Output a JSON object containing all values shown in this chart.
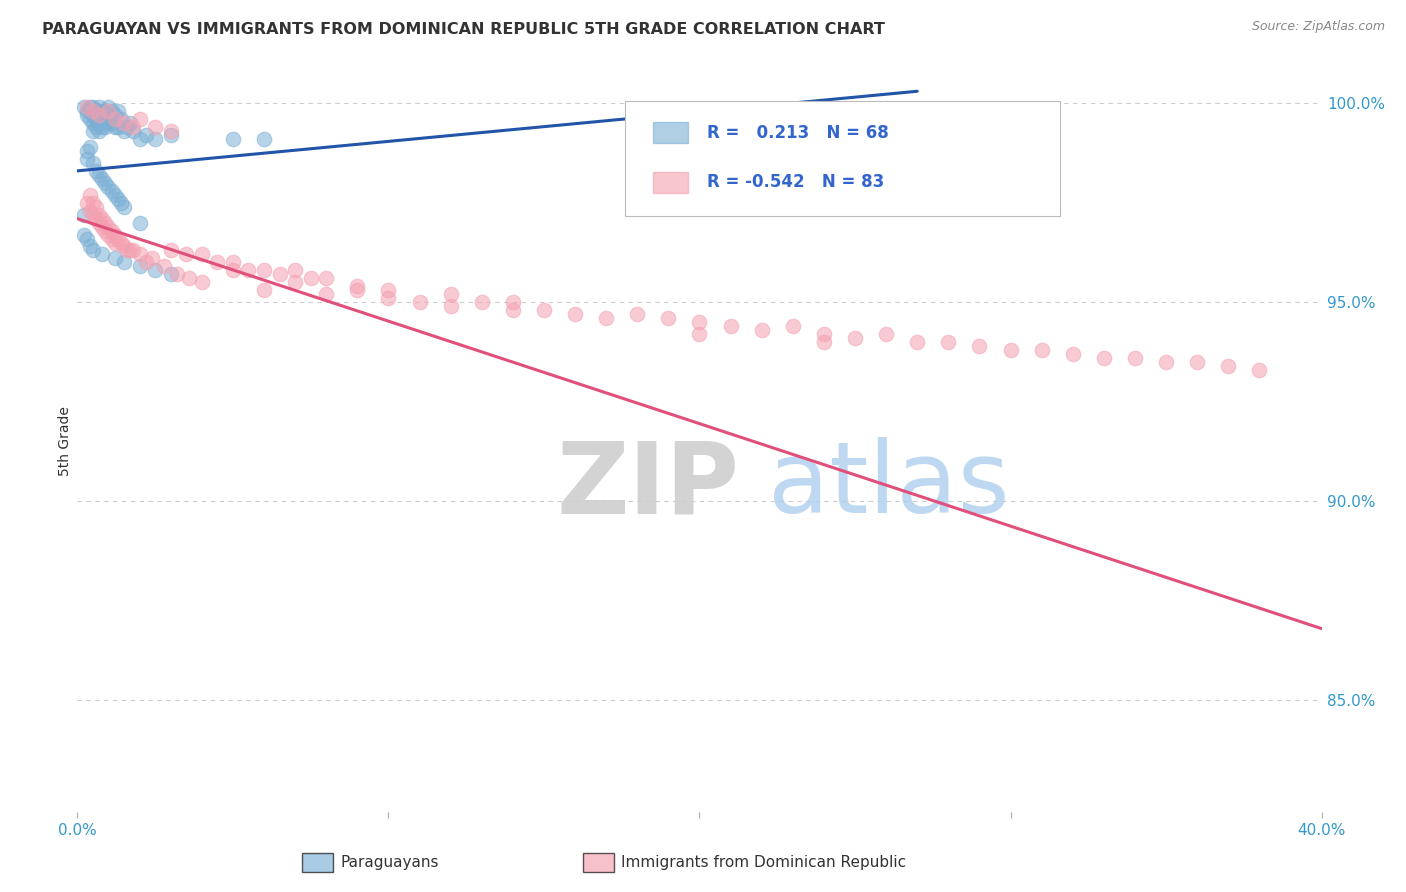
{
  "title": "PARAGUAYAN VS IMMIGRANTS FROM DOMINICAN REPUBLIC 5TH GRADE CORRELATION CHART",
  "source": "Source: ZipAtlas.com",
  "ylabel": "5th Grade",
  "right_yticks": [
    "100.0%",
    "95.0%",
    "90.0%",
    "85.0%"
  ],
  "right_ytick_vals": [
    1.0,
    0.95,
    0.9,
    0.85
  ],
  "xmin": 0.0,
  "xmax": 0.4,
  "ymin": 0.822,
  "ymax": 1.008,
  "legend_R1": " 0.213",
  "legend_N1": "68",
  "legend_R2": "-0.542",
  "legend_N2": "83",
  "blue_color": "#7BAFD4",
  "pink_color": "#F4A0B0",
  "trendline_blue": "#2255AA",
  "trendline_pink": "#E0507A",
  "blue_trend_x": [
    0.0,
    0.27
  ],
  "blue_trend_y": [
    0.983,
    1.003
  ],
  "pink_trend_x": [
    0.0,
    0.4
  ],
  "pink_trend_y": [
    0.971,
    0.868
  ],
  "blue_scatter_x": [
    0.002,
    0.003,
    0.003,
    0.004,
    0.004,
    0.005,
    0.005,
    0.005,
    0.005,
    0.006,
    0.006,
    0.006,
    0.007,
    0.007,
    0.007,
    0.007,
    0.008,
    0.008,
    0.008,
    0.009,
    0.009,
    0.009,
    0.01,
    0.01,
    0.01,
    0.011,
    0.011,
    0.012,
    0.012,
    0.013,
    0.013,
    0.014,
    0.015,
    0.016,
    0.017,
    0.018,
    0.02,
    0.022,
    0.025,
    0.03,
    0.003,
    0.003,
    0.004,
    0.005,
    0.006,
    0.007,
    0.008,
    0.009,
    0.01,
    0.011,
    0.012,
    0.013,
    0.014,
    0.015,
    0.02,
    0.05,
    0.06,
    0.002,
    0.002,
    0.003,
    0.004,
    0.005,
    0.008,
    0.012,
    0.015,
    0.02,
    0.025,
    0.03
  ],
  "blue_scatter_y": [
    0.999,
    0.998,
    0.997,
    0.999,
    0.996,
    0.999,
    0.997,
    0.995,
    0.993,
    0.998,
    0.996,
    0.994,
    0.999,
    0.997,
    0.995,
    0.993,
    0.998,
    0.996,
    0.994,
    0.998,
    0.996,
    0.994,
    0.999,
    0.997,
    0.995,
    0.998,
    0.995,
    0.997,
    0.994,
    0.998,
    0.994,
    0.996,
    0.993,
    0.994,
    0.995,
    0.993,
    0.991,
    0.992,
    0.991,
    0.992,
    0.988,
    0.986,
    0.989,
    0.985,
    0.983,
    0.982,
    0.981,
    0.98,
    0.979,
    0.978,
    0.977,
    0.976,
    0.975,
    0.974,
    0.97,
    0.991,
    0.991,
    0.972,
    0.967,
    0.966,
    0.964,
    0.963,
    0.962,
    0.961,
    0.96,
    0.959,
    0.958,
    0.957
  ],
  "pink_scatter_x": [
    0.003,
    0.004,
    0.004,
    0.005,
    0.005,
    0.006,
    0.006,
    0.007,
    0.007,
    0.008,
    0.008,
    0.009,
    0.009,
    0.01,
    0.01,
    0.011,
    0.011,
    0.012,
    0.012,
    0.013,
    0.014,
    0.015,
    0.016,
    0.017,
    0.018,
    0.02,
    0.022,
    0.024,
    0.028,
    0.032,
    0.036,
    0.04,
    0.05,
    0.06,
    0.07,
    0.08,
    0.09,
    0.1,
    0.11,
    0.12,
    0.13,
    0.14,
    0.15,
    0.16,
    0.17,
    0.18,
    0.19,
    0.2,
    0.21,
    0.22,
    0.23,
    0.24,
    0.25,
    0.26,
    0.27,
    0.28,
    0.29,
    0.3,
    0.31,
    0.32,
    0.33,
    0.34,
    0.35,
    0.36,
    0.37,
    0.38,
    0.04,
    0.05,
    0.06,
    0.07,
    0.08,
    0.09,
    0.1,
    0.12,
    0.14,
    0.03,
    0.035,
    0.045,
    0.055,
    0.065,
    0.075,
    0.2,
    0.24
  ],
  "pink_scatter_x_upper": [
    0.003,
    0.005,
    0.007,
    0.01,
    0.012,
    0.015,
    0.018,
    0.02,
    0.025,
    0.03
  ],
  "pink_scatter_y_upper": [
    0.999,
    0.998,
    0.997,
    0.998,
    0.996,
    0.995,
    0.994,
    0.996,
    0.994,
    0.993
  ],
  "pink_scatter_y": [
    0.975,
    0.977,
    0.973,
    0.975,
    0.972,
    0.974,
    0.971,
    0.972,
    0.97,
    0.971,
    0.969,
    0.97,
    0.968,
    0.969,
    0.967,
    0.968,
    0.966,
    0.967,
    0.965,
    0.966,
    0.965,
    0.964,
    0.963,
    0.963,
    0.963,
    0.962,
    0.96,
    0.961,
    0.959,
    0.957,
    0.956,
    0.955,
    0.958,
    0.953,
    0.955,
    0.952,
    0.953,
    0.951,
    0.95,
    0.949,
    0.95,
    0.948,
    0.948,
    0.947,
    0.946,
    0.947,
    0.946,
    0.945,
    0.944,
    0.943,
    0.944,
    0.942,
    0.941,
    0.942,
    0.94,
    0.94,
    0.939,
    0.938,
    0.938,
    0.937,
    0.936,
    0.936,
    0.935,
    0.935,
    0.934,
    0.933,
    0.962,
    0.96,
    0.958,
    0.958,
    0.956,
    0.954,
    0.953,
    0.952,
    0.95,
    0.963,
    0.962,
    0.96,
    0.958,
    0.957,
    0.956,
    0.942,
    0.94
  ]
}
